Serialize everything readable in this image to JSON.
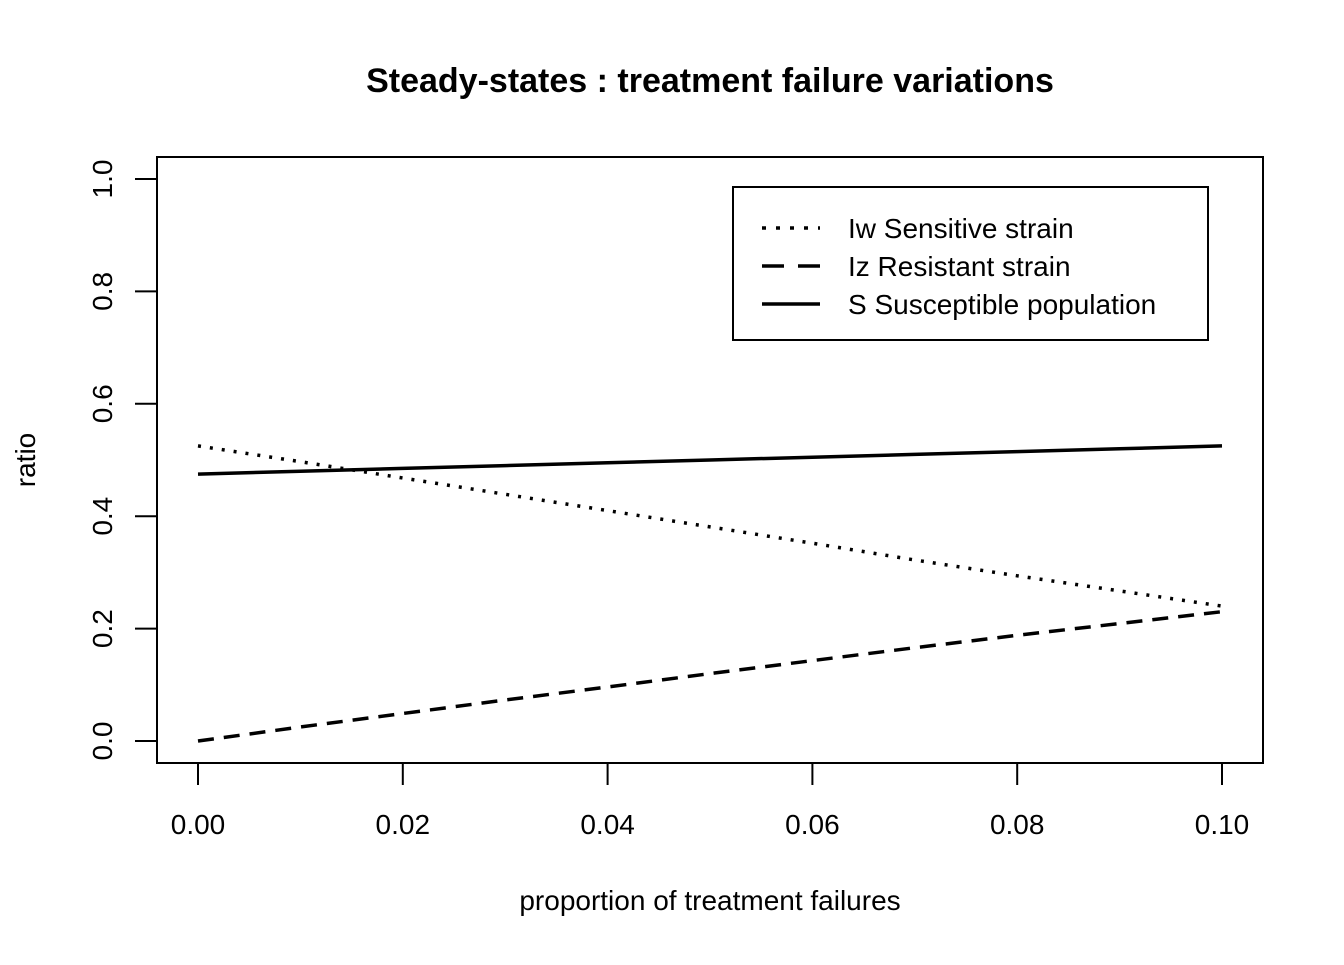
{
  "chart_data": {
    "type": "line",
    "title": "Steady-states : treatment failure variations",
    "xlabel": "proportion of treatment failures",
    "ylabel": "ratio",
    "xlim": [
      0.0,
      0.1
    ],
    "ylim": [
      0.0,
      1.0
    ],
    "x_ticks": [
      "0.00",
      "0.02",
      "0.04",
      "0.06",
      "0.08",
      "0.10"
    ],
    "y_ticks": [
      "0.0",
      "0.2",
      "0.4",
      "0.6",
      "0.8",
      "1.0"
    ],
    "grid": false,
    "legend_position": "top-right",
    "x": [
      0.0,
      0.01,
      0.02,
      0.03,
      0.04,
      0.05,
      0.06,
      0.07,
      0.08,
      0.09,
      0.1
    ],
    "series": [
      {
        "name": "Iw Sensitive strain",
        "line_style": "dotted",
        "values": [
          0.525,
          0.497,
          0.468,
          0.439,
          0.41,
          0.381,
          0.352,
          0.322,
          0.294,
          0.267,
          0.24
        ]
      },
      {
        "name": "Iz Resistant strain",
        "line_style": "dashed",
        "values": [
          0.0,
          0.025,
          0.049,
          0.073,
          0.096,
          0.12,
          0.143,
          0.166,
          0.188,
          0.209,
          0.23
        ]
      },
      {
        "name": "S Susceptible population",
        "line_style": "solid",
        "values": [
          0.475,
          0.48,
          0.485,
          0.49,
          0.495,
          0.5,
          0.505,
          0.51,
          0.515,
          0.52,
          0.525
        ]
      }
    ],
    "color": "#000000"
  }
}
